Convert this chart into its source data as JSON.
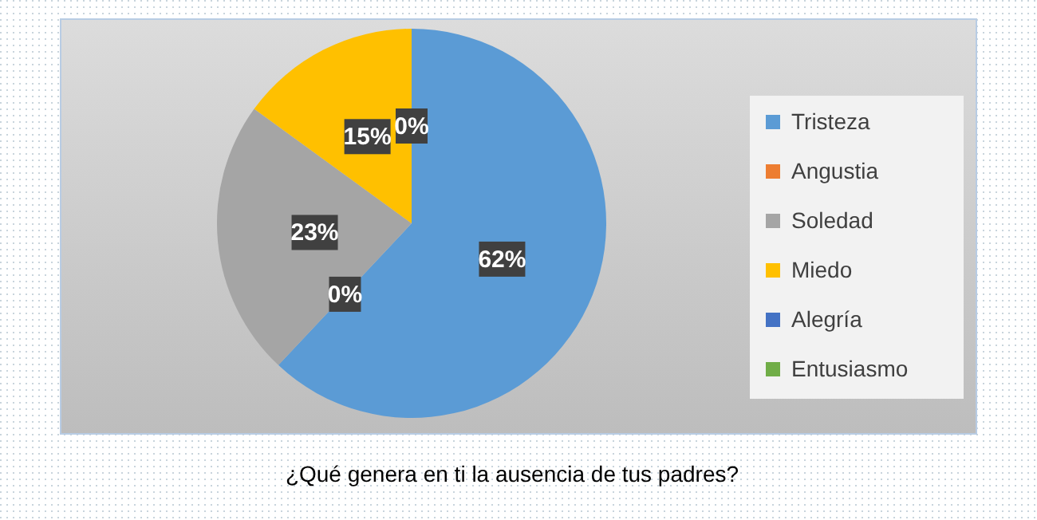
{
  "chart_data": {
    "type": "pie",
    "title": "¿Qué genera en ti la ausencia de tus padres?",
    "categories": [
      "Tristeza",
      "Angustia",
      "Soledad",
      "Miedo",
      "Alegría",
      "Entusiasmo"
    ],
    "values": [
      62,
      0,
      23,
      15,
      0,
      0
    ],
    "colors": [
      "#5b9bd5",
      "#ed7d31",
      "#a5a5a5",
      "#ffc000",
      "#4472c4",
      "#70ad47"
    ],
    "value_labels": [
      "62%",
      "0%",
      "23%",
      "15%",
      "0%",
      null
    ],
    "legend": "right"
  }
}
